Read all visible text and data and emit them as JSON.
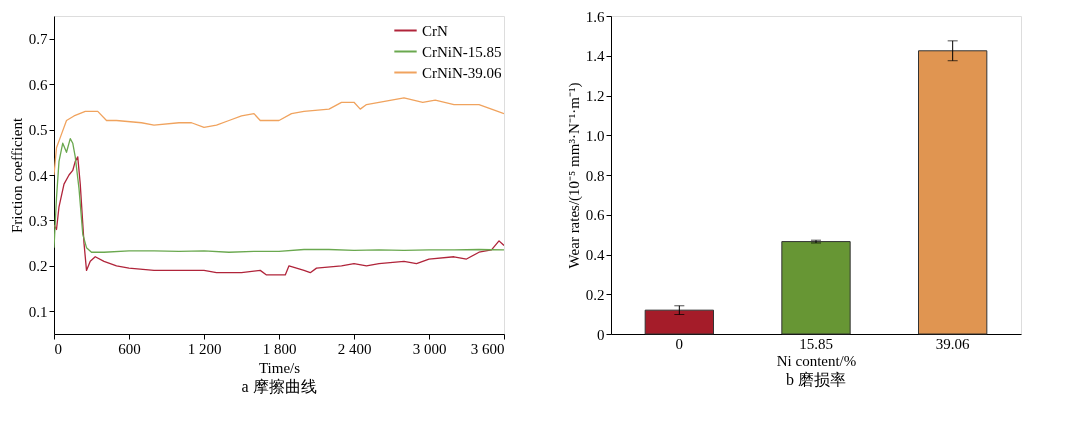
{
  "chart_data": [
    {
      "type": "line",
      "title": "a 摩擦曲线",
      "xlabel": "Time/s",
      "ylabel": "Friction coefficient",
      "xlim": [
        0,
        3600
      ],
      "ylim": [
        0.05,
        0.75
      ],
      "xticks": [
        0,
        600,
        {
          "value": 1200,
          "label": "1 200"
        },
        {
          "value": 1800,
          "label": "1 800"
        },
        {
          "value": 2400,
          "label": "2 400"
        },
        {
          "value": 3000,
          "label": "3 000"
        },
        {
          "value": 3600,
          "label": "3 600"
        }
      ],
      "yticks": [
        0.1,
        0.2,
        0.3,
        0.4,
        0.5,
        0.6,
        0.7
      ],
      "grid": false,
      "legend": "top right",
      "marker": "none",
      "line_style": "solid",
      "series": [
        {
          "name": "CrN",
          "color": "#b0243a",
          "x": [
            0,
            20,
            40,
            80,
            120,
            150,
            170,
            190,
            210,
            240,
            260,
            290,
            330,
            400,
            500,
            600,
            800,
            1000,
            1200,
            1300,
            1500,
            1650,
            1700,
            1850,
            1880,
            2000,
            2050,
            2100,
            2300,
            2400,
            2500,
            2600,
            2800,
            2900,
            3000,
            3200,
            3300,
            3400,
            3500,
            3560,
            3600
          ],
          "values": [
            0.29,
            0.28,
            0.33,
            0.38,
            0.4,
            0.41,
            0.43,
            0.44,
            0.38,
            0.25,
            0.19,
            0.21,
            0.22,
            0.21,
            0.2,
            0.195,
            0.19,
            0.19,
            0.19,
            0.185,
            0.185,
            0.19,
            0.18,
            0.18,
            0.2,
            0.19,
            0.185,
            0.195,
            0.2,
            0.205,
            0.2,
            0.205,
            0.21,
            0.205,
            0.215,
            0.22,
            0.215,
            0.23,
            0.235,
            0.255,
            0.245
          ]
        },
        {
          "name": "CrNiN-15.85",
          "color": "#6aa84f",
          "x": [
            0,
            20,
            40,
            70,
            100,
            130,
            150,
            170,
            200,
            230,
            260,
            300,
            400,
            600,
            800,
            1000,
            1200,
            1400,
            1600,
            1800,
            2000,
            2200,
            2400,
            2600,
            2800,
            3000,
            3200,
            3400,
            3600
          ],
          "values": [
            0.24,
            0.35,
            0.43,
            0.47,
            0.45,
            0.48,
            0.47,
            0.44,
            0.37,
            0.27,
            0.24,
            0.23,
            0.23,
            0.233,
            0.233,
            0.232,
            0.233,
            0.23,
            0.232,
            0.232,
            0.236,
            0.236,
            0.234,
            0.235,
            0.234,
            0.235,
            0.235,
            0.236,
            0.235
          ]
        },
        {
          "name": "CrNiN-39.06",
          "color": "#f0a35e",
          "x": [
            0,
            20,
            60,
            100,
            160,
            250,
            350,
            420,
            500,
            700,
            800,
            1000,
            1100,
            1200,
            1300,
            1400,
            1500,
            1600,
            1650,
            1800,
            1900,
            2000,
            2200,
            2300,
            2400,
            2450,
            2500,
            2600,
            2700,
            2800,
            2950,
            3050,
            3200,
            3400,
            3500,
            3550,
            3600
          ],
          "values": [
            0.4,
            0.46,
            0.49,
            0.52,
            0.53,
            0.54,
            0.54,
            0.52,
            0.52,
            0.515,
            0.51,
            0.515,
            0.515,
            0.505,
            0.51,
            0.52,
            0.53,
            0.535,
            0.52,
            0.52,
            0.535,
            0.54,
            0.545,
            0.56,
            0.56,
            0.545,
            0.555,
            0.56,
            0.565,
            0.57,
            0.56,
            0.565,
            0.555,
            0.555,
            0.545,
            0.54,
            0.535
          ]
        }
      ]
    },
    {
      "type": "bar",
      "title": "b  磨损率",
      "xlabel": "Ni content/%",
      "ylabel": "Wear rates/(10⁻⁵ mm³·N⁻¹·m⁻¹)",
      "categories": [
        "0",
        "15.85",
        "39.06"
      ],
      "values": [
        0.12,
        0.465,
        1.425
      ],
      "errors": [
        0.022,
        0.007,
        0.05
      ],
      "colors": [
        "#a51c29",
        "#679634",
        "#e09551"
      ],
      "ylim": [
        0,
        1.6
      ],
      "yticks": [
        0,
        0.2,
        0.4,
        0.6,
        0.8,
        {
          "value": 1.0,
          "label": "1.0"
        },
        1.2,
        1.4,
        1.6
      ],
      "grid": false
    }
  ]
}
